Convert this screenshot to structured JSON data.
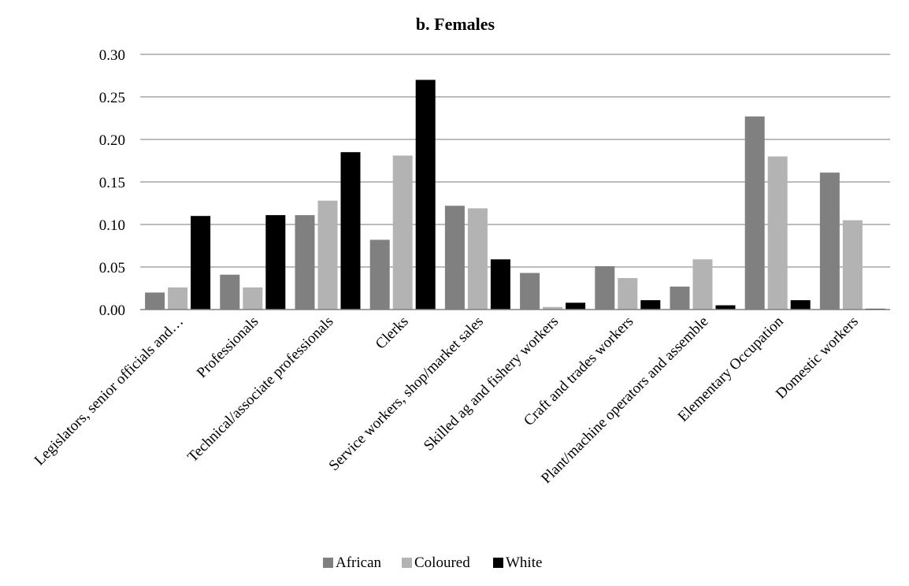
{
  "chart_data": {
    "type": "bar",
    "title": "b. Females",
    "xlabel": "",
    "ylabel": "",
    "ylim": [
      0,
      0.3
    ],
    "yticks": [
      "0.00",
      "0.05",
      "0.10",
      "0.15",
      "0.20",
      "0.25",
      "0.30"
    ],
    "grid": true,
    "legend_position": "bottom",
    "categories": [
      "Legislators, senior officials and…",
      "Professionals",
      "Technical/associate professionals",
      "Clerks",
      "Service workers, shop/market sales",
      "Skilled ag and fishery workers",
      "Craft and trades workers",
      "Plant/machine operators and assemble",
      "Elementary Occupation",
      "Domestic workers"
    ],
    "series": [
      {
        "name": "African",
        "color": "#808080",
        "values": [
          0.02,
          0.041,
          0.111,
          0.082,
          0.122,
          0.043,
          0.051,
          0.027,
          0.227,
          0.161
        ]
      },
      {
        "name": "Coloured",
        "color": "#b3b3b3",
        "values": [
          0.026,
          0.026,
          0.128,
          0.181,
          0.119,
          0.003,
          0.037,
          0.059,
          0.18,
          0.105
        ]
      },
      {
        "name": "White",
        "color": "#000000",
        "values": [
          0.11,
          0.111,
          0.185,
          0.27,
          0.059,
          0.008,
          0.011,
          0.005,
          0.011,
          0.001
        ]
      }
    ]
  }
}
